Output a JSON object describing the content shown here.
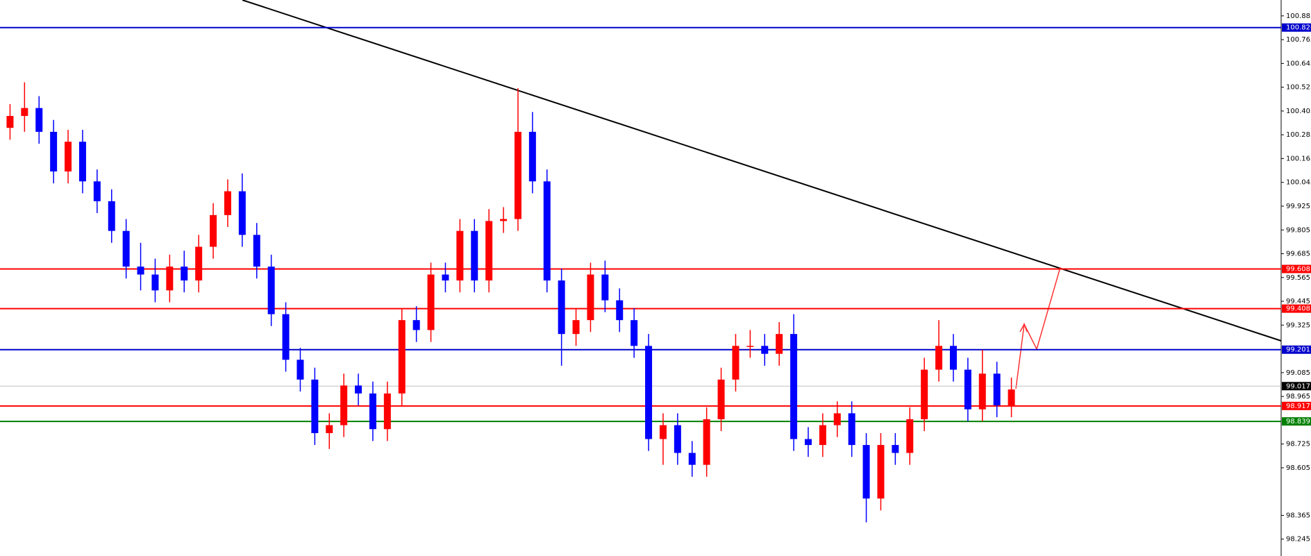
{
  "chart_data": {
    "type": "candlestick",
    "up_color": "#ff0000",
    "down_color": "#0000ff",
    "ylim": [
      98.16,
      100.965
    ],
    "yticks": [
      98.245,
      98.365,
      98.605,
      98.725,
      98.965,
      99.085,
      99.325,
      99.445,
      99.565,
      99.685,
      99.805,
      99.925,
      100.045,
      100.165,
      100.285,
      100.405,
      100.525,
      100.645,
      100.765,
      100.885
    ],
    "open": [
      100.32,
      100.38,
      100.42,
      100.3,
      100.1,
      100.25,
      100.05,
      99.95,
      99.8,
      99.62,
      99.58,
      99.5,
      99.62,
      99.55,
      99.72,
      99.88,
      100.0,
      99.78,
      99.62,
      99.38,
      99.15,
      99.05,
      98.78,
      98.82,
      99.02,
      98.98,
      98.8,
      98.98,
      99.35,
      99.3,
      99.58,
      99.55,
      99.8,
      99.55,
      99.85,
      99.86,
      100.3,
      100.05,
      99.55,
      99.28,
      99.35,
      99.58,
      99.45,
      99.35,
      99.22,
      98.75,
      98.82,
      98.68,
      98.62,
      98.85,
      99.05,
      99.22,
      99.22,
      99.18,
      99.28,
      98.75,
      98.72,
      98.82,
      98.88,
      98.72,
      98.45,
      98.72,
      98.68,
      98.85,
      99.1,
      99.22,
      99.1,
      98.9,
      99.08,
      98.92
    ],
    "high": [
      100.44,
      100.55,
      100.48,
      100.36,
      100.31,
      100.31,
      100.11,
      100.01,
      99.86,
      99.74,
      99.66,
      99.68,
      99.7,
      99.78,
      99.94,
      100.06,
      100.09,
      99.84,
      99.68,
      99.44,
      99.21,
      99.11,
      98.88,
      99.08,
      99.08,
      99.04,
      99.04,
      99.41,
      99.42,
      99.64,
      99.64,
      99.86,
      99.86,
      99.91,
      99.92,
      100.52,
      100.4,
      100.11,
      99.61,
      99.41,
      99.64,
      99.65,
      99.51,
      99.41,
      99.28,
      98.88,
      98.88,
      98.74,
      98.91,
      99.11,
      99.28,
      99.3,
      99.28,
      99.34,
      99.38,
      98.81,
      98.88,
      98.94,
      98.94,
      98.78,
      98.78,
      98.78,
      98.91,
      99.16,
      99.35,
      99.28,
      99.16,
      99.2,
      99.14,
      99.06
    ],
    "low": [
      100.26,
      100.3,
      100.24,
      100.04,
      100.04,
      99.99,
      99.89,
      99.74,
      99.56,
      99.5,
      99.44,
      99.44,
      99.49,
      99.49,
      99.66,
      99.82,
      99.72,
      99.56,
      99.32,
      99.09,
      98.99,
      98.72,
      98.7,
      98.76,
      98.92,
      98.74,
      98.74,
      98.92,
      99.24,
      99.24,
      99.49,
      99.49,
      99.49,
      99.49,
      99.79,
      99.8,
      99.99,
      99.49,
      99.12,
      99.22,
      99.29,
      99.39,
      99.29,
      99.16,
      98.69,
      98.62,
      98.62,
      98.56,
      98.56,
      98.79,
      98.99,
      99.16,
      99.12,
      99.12,
      98.69,
      98.66,
      98.66,
      98.76,
      98.66,
      98.33,
      98.39,
      98.62,
      98.62,
      98.79,
      99.04,
      99.04,
      98.84,
      98.84,
      98.86,
      98.86
    ],
    "close": [
      100.38,
      100.42,
      100.3,
      100.1,
      100.25,
      100.05,
      99.95,
      99.8,
      99.62,
      99.58,
      99.5,
      99.62,
      99.55,
      99.72,
      99.88,
      100.0,
      99.78,
      99.62,
      99.38,
      99.15,
      99.05,
      98.78,
      98.82,
      99.02,
      98.98,
      98.8,
      98.98,
      99.35,
      99.3,
      99.58,
      99.55,
      99.8,
      99.55,
      99.85,
      99.86,
      100.3,
      100.05,
      99.55,
      99.28,
      99.35,
      99.58,
      99.45,
      99.35,
      99.22,
      98.75,
      98.82,
      98.68,
      98.62,
      98.85,
      99.05,
      99.22,
      99.22,
      99.18,
      99.28,
      98.75,
      98.72,
      98.82,
      98.88,
      98.72,
      98.45,
      98.72,
      98.68,
      98.85,
      99.1,
      99.22,
      99.1,
      98.9,
      99.08,
      98.92,
      99.0
    ],
    "levels": [
      {
        "value": 100.826,
        "color": "#0000cc"
      },
      {
        "value": 99.608,
        "color": "#ff0000"
      },
      {
        "value": 99.408,
        "color": "#ff0000"
      },
      {
        "value": 99.201,
        "color": "#0000cc"
      },
      {
        "value": 99.017,
        "color": "#c0c0c0"
      },
      {
        "value": 98.917,
        "color": "#ff0000"
      },
      {
        "value": 98.839,
        "color": "#008000"
      }
    ]
  }
}
